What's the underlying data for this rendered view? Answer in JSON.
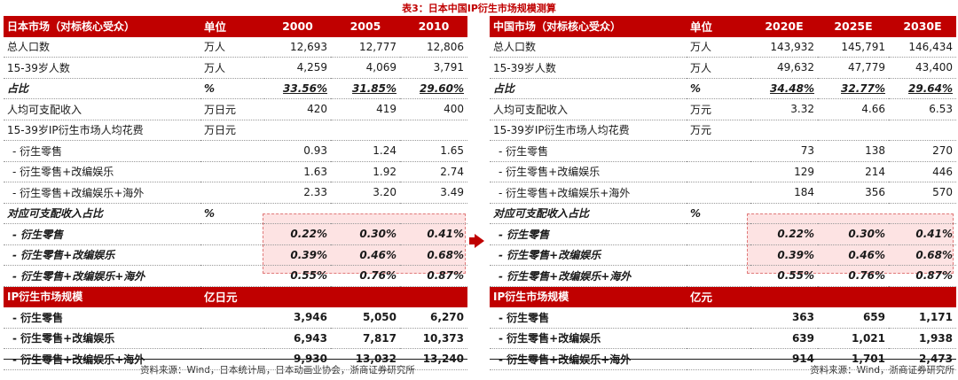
{
  "title": "表3：日本中国IP衍生市场规模测算",
  "japan": {
    "header": {
      "label": "日本市场（对标核心受众）",
      "unit": "单位",
      "cols": [
        "2000",
        "2005",
        "2010"
      ]
    },
    "rows": [
      {
        "label": "总人口数",
        "unit": "万人",
        "v": [
          "12,693",
          "12,777",
          "12,806"
        ],
        "style": ""
      },
      {
        "label": "15-39岁人数",
        "unit": "万人",
        "v": [
          "4,259",
          "4,069",
          "3,791"
        ],
        "style": ""
      },
      {
        "label": "占比",
        "unit": "%",
        "v": [
          "33.56%",
          "31.85%",
          "29.60%"
        ],
        "style": "bi"
      },
      {
        "label": "人均可支配收入",
        "unit": "万日元",
        "v": [
          "420",
          "419",
          "400"
        ],
        "style": ""
      },
      {
        "label": "15-39岁IP衍生市场人均花费",
        "unit": "万日元",
        "v": [
          "",
          "",
          ""
        ],
        "style": ""
      },
      {
        "label": "- 衍生零售",
        "unit": "",
        "v": [
          "0.93",
          "1.24",
          "1.65"
        ],
        "style": "ind"
      },
      {
        "label": "- 衍生零售+改编娱乐",
        "unit": "",
        "v": [
          "1.63",
          "1.92",
          "2.74"
        ],
        "style": "ind"
      },
      {
        "label": "- 衍生零售+改编娱乐+海外",
        "unit": "",
        "v": [
          "2.33",
          "3.20",
          "3.49"
        ],
        "style": "ind"
      },
      {
        "label": "对应可支配收入占比",
        "unit": "%",
        "v": [
          "",
          "",
          ""
        ],
        "style": "hl"
      },
      {
        "label": "- 衍生零售",
        "unit": "",
        "v": [
          "0.22%",
          "0.30%",
          "0.41%"
        ],
        "style": "hl ind"
      },
      {
        "label": "- 衍生零售+改编娱乐",
        "unit": "",
        "v": [
          "0.39%",
          "0.46%",
          "0.68%"
        ],
        "style": "hl ind"
      },
      {
        "label": "- 衍生零售+改编娱乐+海外",
        "unit": "",
        "v": [
          "0.55%",
          "0.76%",
          "0.87%"
        ],
        "style": "hl ind"
      }
    ],
    "header2": {
      "label": "IP衍生市场规模",
      "unit": "亿日元"
    },
    "rows2": [
      {
        "label": "- 衍生零售",
        "v": [
          "3,946",
          "5,050",
          "6,270"
        ]
      },
      {
        "label": "- 衍生零售+改编娱乐",
        "v": [
          "6,943",
          "7,817",
          "10,373"
        ]
      },
      {
        "label": "- 衍生零售+改编娱乐+海外",
        "v": [
          "9,930",
          "13,032",
          "13,240"
        ]
      }
    ],
    "source": "资料来源：Wind，日本统计局，日本动画业协会，浙商证券研究所"
  },
  "china": {
    "header": {
      "label": "中国市场（对标核心受众）",
      "unit": "单位",
      "cols": [
        "2020E",
        "2025E",
        "2030E"
      ]
    },
    "rows": [
      {
        "label": "总人口数",
        "unit": "万人",
        "v": [
          "143,932",
          "145,791",
          "146,434"
        ],
        "style": ""
      },
      {
        "label": "15-39岁人数",
        "unit": "万人",
        "v": [
          "49,632",
          "47,779",
          "43,400"
        ],
        "style": ""
      },
      {
        "label": "占比",
        "unit": "%",
        "v": [
          "34.48%",
          "32.77%",
          "29.64%"
        ],
        "style": "bi"
      },
      {
        "label": "人均可支配收入",
        "unit": "万元",
        "v": [
          "3.32",
          "4.66",
          "6.53"
        ],
        "style": ""
      },
      {
        "label": "15-39岁IP衍生市场人均花费",
        "unit": "万元",
        "v": [
          "",
          "",
          ""
        ],
        "style": ""
      },
      {
        "label": "- 衍生零售",
        "unit": "",
        "v": [
          "73",
          "138",
          "270"
        ],
        "style": "ind"
      },
      {
        "label": "- 衍生零售+改编娱乐",
        "unit": "",
        "v": [
          "129",
          "214",
          "446"
        ],
        "style": "ind"
      },
      {
        "label": "- 衍生零售+改编娱乐+海外",
        "unit": "",
        "v": [
          "184",
          "356",
          "570"
        ],
        "style": "ind"
      },
      {
        "label": "对应可支配收入占比",
        "unit": "%",
        "v": [
          "",
          "",
          ""
        ],
        "style": "hl"
      },
      {
        "label": "- 衍生零售",
        "unit": "",
        "v": [
          "0.22%",
          "0.30%",
          "0.41%"
        ],
        "style": "hl ind"
      },
      {
        "label": "- 衍生零售+改编娱乐",
        "unit": "",
        "v": [
          "0.39%",
          "0.46%",
          "0.68%"
        ],
        "style": "hl ind"
      },
      {
        "label": "- 衍生零售+改编娱乐+海外",
        "unit": "",
        "v": [
          "0.55%",
          "0.76%",
          "0.87%"
        ],
        "style": "hl ind"
      }
    ],
    "header2": {
      "label": "IP衍生市场规模",
      "unit": "亿元"
    },
    "rows2": [
      {
        "label": "- 衍生零售",
        "v": [
          "363",
          "659",
          "1,171"
        ]
      },
      {
        "label": "- 衍生零售+改编娱乐",
        "v": [
          "639",
          "1,021",
          "1,938"
        ]
      },
      {
        "label": "- 衍生零售+改编娱乐+海外",
        "v": [
          "914",
          "1,701",
          "2,473"
        ]
      }
    ],
    "source": "资料来源：Wind，浙商证券研究所"
  },
  "colors": {
    "header_bg": "#c00000",
    "highlight_bg": "#fde3e3",
    "highlight_border": "#e07a7a"
  }
}
